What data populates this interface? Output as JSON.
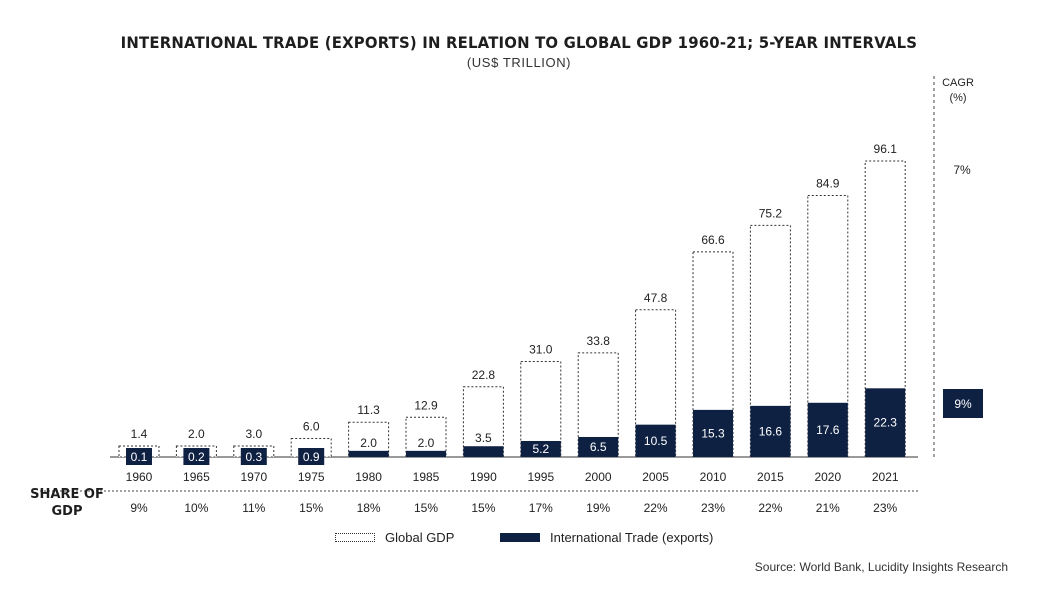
{
  "chart_data": {
    "type": "bar",
    "title": "INTERNATIONAL TRADE (EXPORTS) IN RELATION TO GLOBAL GDP 1960-21; 5-YEAR INTERVALS",
    "subtitle": "(US$ TRILLION)",
    "categories": [
      "1960",
      "1965",
      "1970",
      "1975",
      "1980",
      "1985",
      "1990",
      "1995",
      "2000",
      "2005",
      "2010",
      "2015",
      "2020",
      "2021"
    ],
    "series": [
      {
        "name": "Global GDP",
        "values": [
          1.4,
          2.0,
          3.0,
          6.0,
          11.3,
          12.9,
          22.8,
          31.0,
          33.8,
          47.8,
          66.6,
          75.2,
          84.9,
          96.1
        ],
        "labels": [
          "1.4",
          "2.0",
          "3.0",
          "6.0",
          "11.3",
          "12.9",
          "22.8",
          "31.0",
          "33.8",
          "47.8",
          "66.6",
          "75.2",
          "84.9",
          "96.1"
        ],
        "color": "#ffffff"
      },
      {
        "name": "International Trade (exports)",
        "values": [
          0.1,
          0.2,
          0.3,
          0.9,
          2.0,
          2.0,
          3.5,
          5.2,
          6.5,
          10.5,
          15.3,
          16.6,
          17.6,
          22.3
        ],
        "labels": [
          "0.1",
          "0.2",
          "0.3",
          "0.9",
          "2.0",
          "2.0",
          "3.5",
          "5.2",
          "6.5",
          "10.5",
          "15.3",
          "16.6",
          "17.6",
          "22.3"
        ],
        "color": "#0f2143"
      }
    ],
    "share_of_gdp": {
      "label_line1": "SHARE OF",
      "label_line2": "GDP",
      "values": [
        "9%",
        "10%",
        "11%",
        "15%",
        "18%",
        "15%",
        "15%",
        "17%",
        "19%",
        "22%",
        "23%",
        "22%",
        "21%",
        "23%"
      ]
    },
    "cagr": {
      "label_line1": "CAGR",
      "label_line2": "(%)",
      "gdp": "7%",
      "trade": "9%"
    },
    "ylim": [
      0,
      100
    ],
    "grid": false,
    "legend_position": "bottom-center",
    "colors": {
      "trade": "#0f2143",
      "gdp_border": "#333333"
    }
  },
  "legend": {
    "gdp_label": "Global GDP",
    "trade_label": "International Trade (exports)"
  },
  "source": "Source: World Bank, Lucidity Insights Research"
}
